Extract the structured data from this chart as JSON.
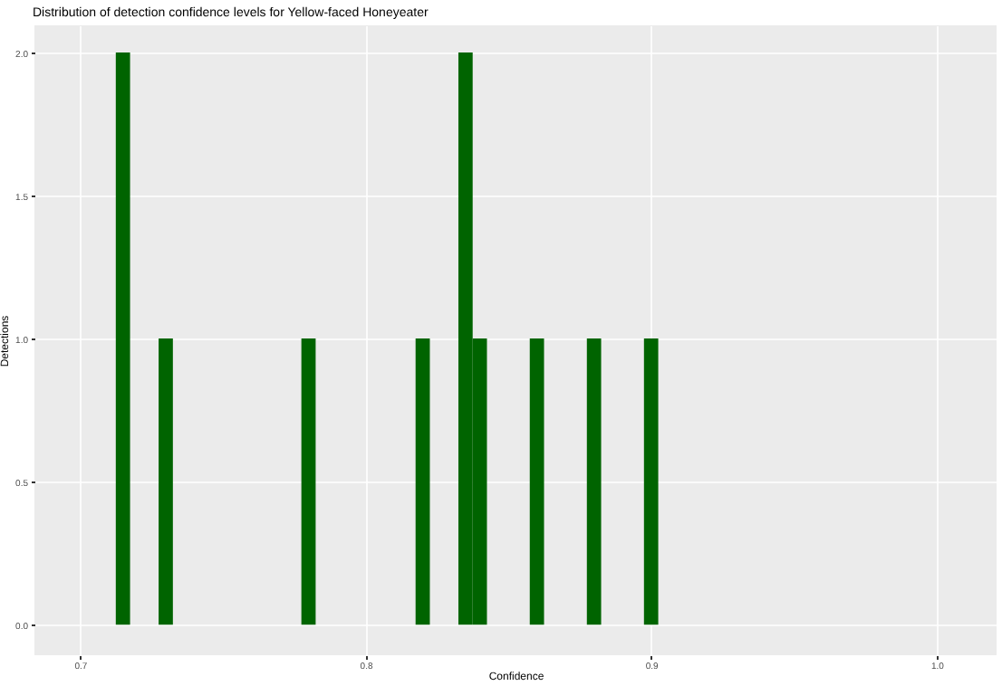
{
  "chart_data": {
    "type": "histogram",
    "title": "Distribution of detection confidence levels for Yellow-faced Honeyeater",
    "xlabel": "Confidence",
    "ylabel": "Detections",
    "bins": [
      0.7125,
      0.7175,
      0.7225,
      0.7275,
      0.7325,
      0.7375,
      0.7425,
      0.7475,
      0.7525,
      0.7575,
      0.7625,
      0.7675,
      0.7725,
      0.7775,
      0.7825,
      0.7875,
      0.7925,
      0.7975,
      0.8025,
      0.8075,
      0.8125,
      0.8175,
      0.8225,
      0.8275,
      0.8325,
      0.8375,
      0.8425,
      0.8475,
      0.8525,
      0.8575,
      0.8625,
      0.8675,
      0.8725,
      0.8775,
      0.8825,
      0.8875,
      0.8925,
      0.8975,
      0.9025
    ],
    "values": [
      2,
      0,
      0,
      1,
      0,
      0,
      0,
      0,
      0,
      0,
      0,
      0,
      0,
      1,
      0,
      0,
      0,
      0,
      0,
      0,
      0,
      1,
      0,
      0,
      2,
      1,
      0,
      0,
      0,
      1,
      0,
      0,
      0,
      1,
      0,
      0,
      0,
      1
    ],
    "color": "#006400",
    "xlim": [
      0.684,
      1.021
    ],
    "xticks": [
      0.7,
      0.8,
      0.9,
      {
        "value": 1.0,
        "label": "1.0"
      }
    ],
    "ylim": [
      -0.107,
      2.095
    ],
    "yticks": [
      {
        "value": 0,
        "label": "0.0"
      },
      0.5,
      {
        "value": 1,
        "label": "1.0"
      },
      1.5,
      {
        "value": 2,
        "label": "2.0"
      }
    ],
    "grid": true
  }
}
